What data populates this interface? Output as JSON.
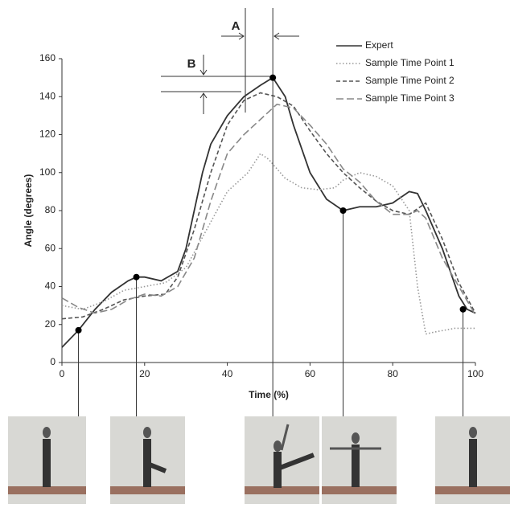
{
  "chart_data": {
    "type": "line",
    "x_label": "Time (%)",
    "y_label": "Angle (degrees)",
    "xlim": [
      0,
      100
    ],
    "xticks": [
      0,
      20,
      40,
      60,
      80,
      100
    ],
    "ylim": [
      0,
      160
    ],
    "yticks": [
      0,
      20,
      40,
      60,
      80,
      100,
      120,
      140,
      160
    ],
    "grid": false,
    "legend": "upper right",
    "annotations": [
      "A",
      "B"
    ],
    "series": [
      {
        "name": "Expert",
        "color": "#333333",
        "style": "solid",
        "x": [
          0,
          4,
          8,
          12,
          16,
          18,
          20,
          24,
          28,
          30,
          32,
          34,
          36,
          40,
          44,
          48,
          51,
          54,
          56,
          60,
          64,
          68,
          72,
          76,
          80,
          84,
          86,
          88,
          92,
          96,
          98,
          100
        ],
        "values": [
          8,
          17,
          28,
          37,
          43,
          45,
          45,
          43,
          48,
          60,
          80,
          100,
          115,
          130,
          140,
          146,
          150,
          140,
          125,
          100,
          86,
          80,
          82,
          82,
          84,
          90,
          89,
          80,
          60,
          35,
          28,
          26
        ]
      },
      {
        "name": "Sample Time Point 1",
        "color": "#999999",
        "style": "dotted",
        "x": [
          0,
          5,
          10,
          15,
          20,
          25,
          30,
          35,
          40,
          45,
          48,
          50,
          54,
          58,
          62,
          66,
          68,
          72,
          76,
          80,
          84,
          86,
          88,
          90,
          95,
          100
        ],
        "values": [
          30,
          28,
          32,
          38,
          40,
          42,
          50,
          70,
          90,
          100,
          110,
          107,
          97,
          92,
          91,
          92,
          96,
          100,
          98,
          93,
          80,
          40,
          15,
          16,
          18,
          18
        ]
      },
      {
        "name": "Sample Time Point 2",
        "color": "#555555",
        "style": "dashed",
        "x": [
          0,
          5,
          10,
          15,
          20,
          25,
          28,
          32,
          36,
          40,
          44,
          48,
          52,
          56,
          60,
          64,
          68,
          72,
          76,
          80,
          84,
          88,
          92,
          96,
          100
        ],
        "values": [
          23,
          24,
          28,
          33,
          35,
          36,
          45,
          70,
          100,
          125,
          138,
          142,
          140,
          135,
          122,
          110,
          100,
          92,
          85,
          80,
          78,
          84,
          65,
          42,
          26
        ]
      },
      {
        "name": "Sample Time Point 3",
        "color": "#888888",
        "style": "longdash",
        "x": [
          0,
          4,
          8,
          12,
          16,
          20,
          24,
          28,
          32,
          36,
          40,
          44,
          48,
          52,
          56,
          60,
          64,
          68,
          72,
          76,
          80,
          84,
          86,
          88,
          92,
          96,
          100
        ],
        "values": [
          34,
          29,
          26,
          28,
          33,
          36,
          35,
          40,
          55,
          85,
          110,
          120,
          128,
          136,
          134,
          125,
          115,
          102,
          95,
          85,
          78,
          78,
          80,
          76,
          55,
          40,
          25
        ]
      }
    ],
    "points": {
      "x": [
        4,
        18,
        51,
        68,
        97
      ],
      "values": [
        17,
        45,
        150,
        80,
        28
      ]
    }
  }
}
